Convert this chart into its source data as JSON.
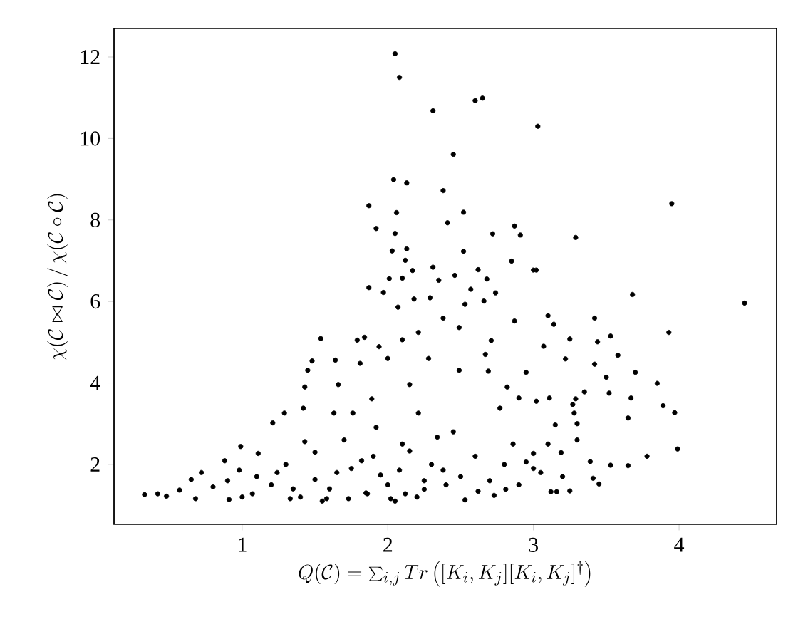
{
  "chart_data": {
    "type": "scatter",
    "xlabel": "Q(\\mathcal{C}) = \\sum_{i,j} Tr\\left([K_i,K_j][K_i,K_j]^\\dagger\\right)",
    "ylabel": "\\chi(\\mathcal{C}\\bowtie\\mathcal{C})\\,/\\,\\chi(\\mathcal{C}\\circ\\mathcal{C})",
    "xlim": [
      0.12,
      4.67
    ],
    "ylim": [
      0.53,
      12.7
    ],
    "xticks": [
      1,
      2,
      3,
      4
    ],
    "yticks": [
      2,
      4,
      6,
      8,
      10,
      12
    ],
    "marker": "circle",
    "grid": false,
    "series": [
      {
        "color": "#000000",
        "x": [
          2.05,
          2.08,
          2.31,
          2.04,
          2.13,
          2.38,
          1.87,
          2.06,
          1.92,
          2.05,
          2.03,
          2.13,
          2.12,
          2.31,
          2.17,
          2.6,
          2.65,
          3.03,
          2.45,
          3.95,
          2.52,
          2.41,
          2.72,
          2.87,
          2.91,
          3.29,
          2.52,
          2.85,
          2.62,
          3.0,
          3.02,
          3.68,
          4.45,
          2.87,
          3.1,
          3.42,
          3.93,
          3.14,
          3.25,
          3.53,
          3.07,
          3.44,
          3.58,
          3.22,
          3.42,
          3.7,
          3.5,
          3.85,
          2.95,
          3.52,
          3.67,
          3.89,
          3.97,
          3.35,
          3.65,
          3.99,
          3.78,
          3.65,
          3.45,
          3.41,
          3.25,
          3.12,
          3.16,
          3.53,
          3.39,
          3.27,
          3.29,
          3.11,
          2.9,
          2.82,
          2.69,
          2.67,
          2.74,
          2.68,
          2.57,
          2.66,
          2.53,
          2.46,
          2.71,
          2.95,
          3.05,
          2.81,
          2.73,
          2.53,
          2.62,
          2.86,
          3.0,
          3.19,
          3.28,
          3.15,
          3.02,
          2.77,
          2.49,
          2.49,
          0.33,
          0.42,
          0.48,
          0.57,
          0.65,
          0.68,
          0.72,
          0.8,
          0.88,
          0.91,
          0.99,
          0.98,
          1.07,
          1.11,
          1.21,
          1.29,
          1.24,
          1.33,
          1.42,
          1.43,
          1.45,
          1.48,
          1.54,
          1.43,
          1.5,
          1.58,
          1.64,
          1.63,
          1.73,
          1.66,
          1.79,
          1.84,
          1.81,
          1.87,
          1.97,
          2.01,
          2.1,
          1.94,
          2.0,
          1.89,
          1.76,
          1.92,
          1.82,
          1.95,
          1.86,
          2.02,
          2.07,
          2.18,
          2.29,
          2.21,
          2.28,
          2.1,
          2.15,
          2.21,
          2.34,
          2.15,
          2.25,
          2.12,
          2.38,
          2.08,
          2.38,
          2.35,
          1.2,
          1.3,
          1.4,
          1.5,
          1.6,
          1.7,
          1.75,
          1.85,
          1.9,
          2.0,
          2.1,
          2.2,
          2.3,
          2.4,
          2.45,
          2.5,
          2.6,
          2.7,
          2.8,
          2.9,
          3.0,
          3.1,
          3.2,
          3.3,
          3.3,
          1.1,
          1.0,
          0.9,
          1.35,
          1.55,
          1.65,
          2.05,
          2.25
        ],
        "values": [
          12.08,
          11.5,
          10.68,
          8.99,
          8.91,
          8.72,
          8.35,
          8.18,
          7.79,
          7.67,
          7.24,
          7.29,
          7.01,
          6.84,
          6.76,
          10.93,
          10.99,
          10.3,
          9.61,
          8.4,
          8.19,
          7.93,
          7.66,
          7.85,
          7.63,
          7.57,
          7.23,
          6.99,
          6.78,
          6.77,
          6.77,
          6.17,
          5.96,
          5.52,
          5.65,
          5.59,
          5.24,
          5.44,
          5.08,
          5.15,
          4.9,
          5.01,
          4.68,
          4.59,
          4.46,
          4.26,
          4.14,
          3.99,
          4.26,
          3.75,
          3.63,
          3.44,
          3.27,
          3.78,
          3.14,
          2.38,
          2.2,
          1.97,
          1.52,
          1.66,
          1.35,
          1.33,
          1.33,
          1.98,
          2.07,
          3.47,
          3.61,
          3.63,
          3.63,
          3.9,
          4.29,
          4.7,
          6.21,
          6.55,
          6.3,
          6.01,
          5.93,
          6.64,
          5.04,
          2.06,
          1.8,
          1.39,
          1.24,
          1.13,
          1.34,
          2.5,
          2.27,
          2.29,
          3.26,
          2.97,
          3.55,
          3.38,
          4.31,
          5.36,
          1.26,
          1.28,
          1.22,
          1.37,
          1.63,
          1.16,
          1.8,
          1.45,
          2.09,
          1.14,
          2.44,
          1.86,
          1.28,
          2.27,
          3.02,
          3.26,
          1.8,
          1.16,
          3.38,
          3.9,
          4.31,
          4.54,
          5.09,
          2.56,
          1.63,
          1.16,
          4.56,
          3.26,
          1.16,
          3.96,
          5.05,
          5.12,
          4.48,
          6.34,
          6.22,
          6.56,
          6.57,
          4.89,
          4.6,
          3.61,
          3.26,
          2.91,
          2.09,
          1.74,
          1.28,
          1.16,
          5.86,
          6.06,
          6.09,
          5.24,
          4.6,
          5.06,
          3.96,
          3.26,
          2.67,
          2.33,
          1.39,
          1.28,
          1.86,
          1.86,
          5.59,
          6.52,
          1.5,
          2.0,
          1.2,
          2.3,
          1.4,
          2.6,
          1.9,
          1.3,
          2.2,
          1.5,
          2.5,
          1.2,
          2.0,
          1.5,
          2.8,
          1.7,
          2.2,
          1.6,
          2.0,
          1.5,
          1.9,
          2.5,
          1.7,
          2.6,
          3.0,
          1.7,
          1.2,
          1.6,
          1.4,
          1.1,
          1.8,
          1.1,
          1.6
        ]
      }
    ]
  }
}
